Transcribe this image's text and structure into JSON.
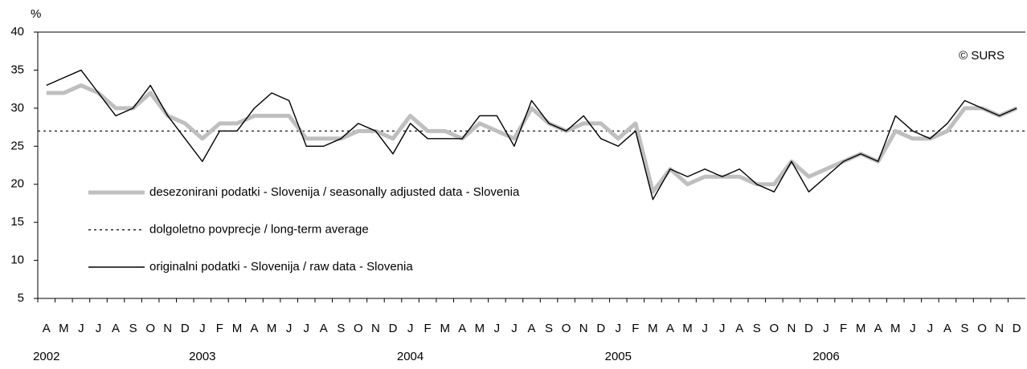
{
  "chart_data": {
    "type": "line",
    "y_axis_label": "%",
    "annotation": "© SURS",
    "categories": [
      "A",
      "M",
      "J",
      "J",
      "A",
      "S",
      "O",
      "N",
      "D",
      "J",
      "F",
      "M",
      "A",
      "M",
      "J",
      "J",
      "A",
      "S",
      "O",
      "N",
      "D",
      "J",
      "F",
      "M",
      "A",
      "M",
      "J",
      "J",
      "A",
      "S",
      "O",
      "N",
      "D",
      "J",
      "F",
      "M",
      "A",
      "M",
      "J",
      "J",
      "A",
      "S",
      "O",
      "N",
      "D",
      "J",
      "F",
      "M",
      "A",
      "M",
      "J",
      "J",
      "A",
      "S",
      "O",
      "N",
      "D"
    ],
    "category_groups": [
      "2002",
      null,
      null,
      null,
      null,
      null,
      null,
      null,
      null,
      "2003",
      null,
      null,
      null,
      null,
      null,
      null,
      null,
      null,
      null,
      null,
      null,
      "2004",
      null,
      null,
      null,
      null,
      null,
      null,
      null,
      null,
      null,
      null,
      null,
      "2005",
      null,
      null,
      null,
      null,
      null,
      null,
      null,
      null,
      null,
      null,
      null,
      "2006",
      null,
      null,
      null,
      null,
      null,
      null,
      null,
      null,
      null,
      null,
      null
    ],
    "series": [
      {
        "name": "desezonirani podatki - Slovenija / seasonally adjusted data - Slovenia",
        "color": "#bfbfbf",
        "values": [
          32,
          32,
          33,
          32,
          30,
          30,
          32,
          29,
          28,
          26,
          28,
          28,
          29,
          29,
          29,
          26,
          26,
          26,
          27,
          27,
          26,
          29,
          27,
          27,
          26,
          28,
          27,
          26,
          30,
          28,
          27,
          28,
          28,
          26,
          28,
          19,
          22,
          20,
          21,
          21,
          21,
          20,
          20,
          23,
          21,
          22,
          23,
          24,
          23,
          27,
          26,
          26,
          27,
          30,
          30,
          29,
          30
        ]
      },
      {
        "name": "originalni podatki - Slovenija / raw data - Slovenia",
        "color": "#000000",
        "values": [
          33,
          34,
          35,
          32,
          29,
          30,
          33,
          29,
          26,
          23,
          27,
          27,
          30,
          32,
          31,
          25,
          25,
          26,
          28,
          27,
          24,
          28,
          26,
          26,
          26,
          29,
          29,
          25,
          31,
          28,
          27,
          29,
          26,
          25,
          27,
          18,
          22,
          21,
          22,
          21,
          22,
          20,
          19,
          23,
          19,
          21,
          23,
          24,
          23,
          29,
          27,
          26,
          28,
          31,
          30,
          29,
          30
        ]
      }
    ],
    "average": {
      "name": "dolgoletno povprecje / long-term average",
      "value": 27,
      "color": "#000000"
    },
    "ylim": [
      5,
      40
    ],
    "yticks": [
      5,
      10,
      15,
      20,
      25,
      30,
      35,
      40
    ]
  }
}
